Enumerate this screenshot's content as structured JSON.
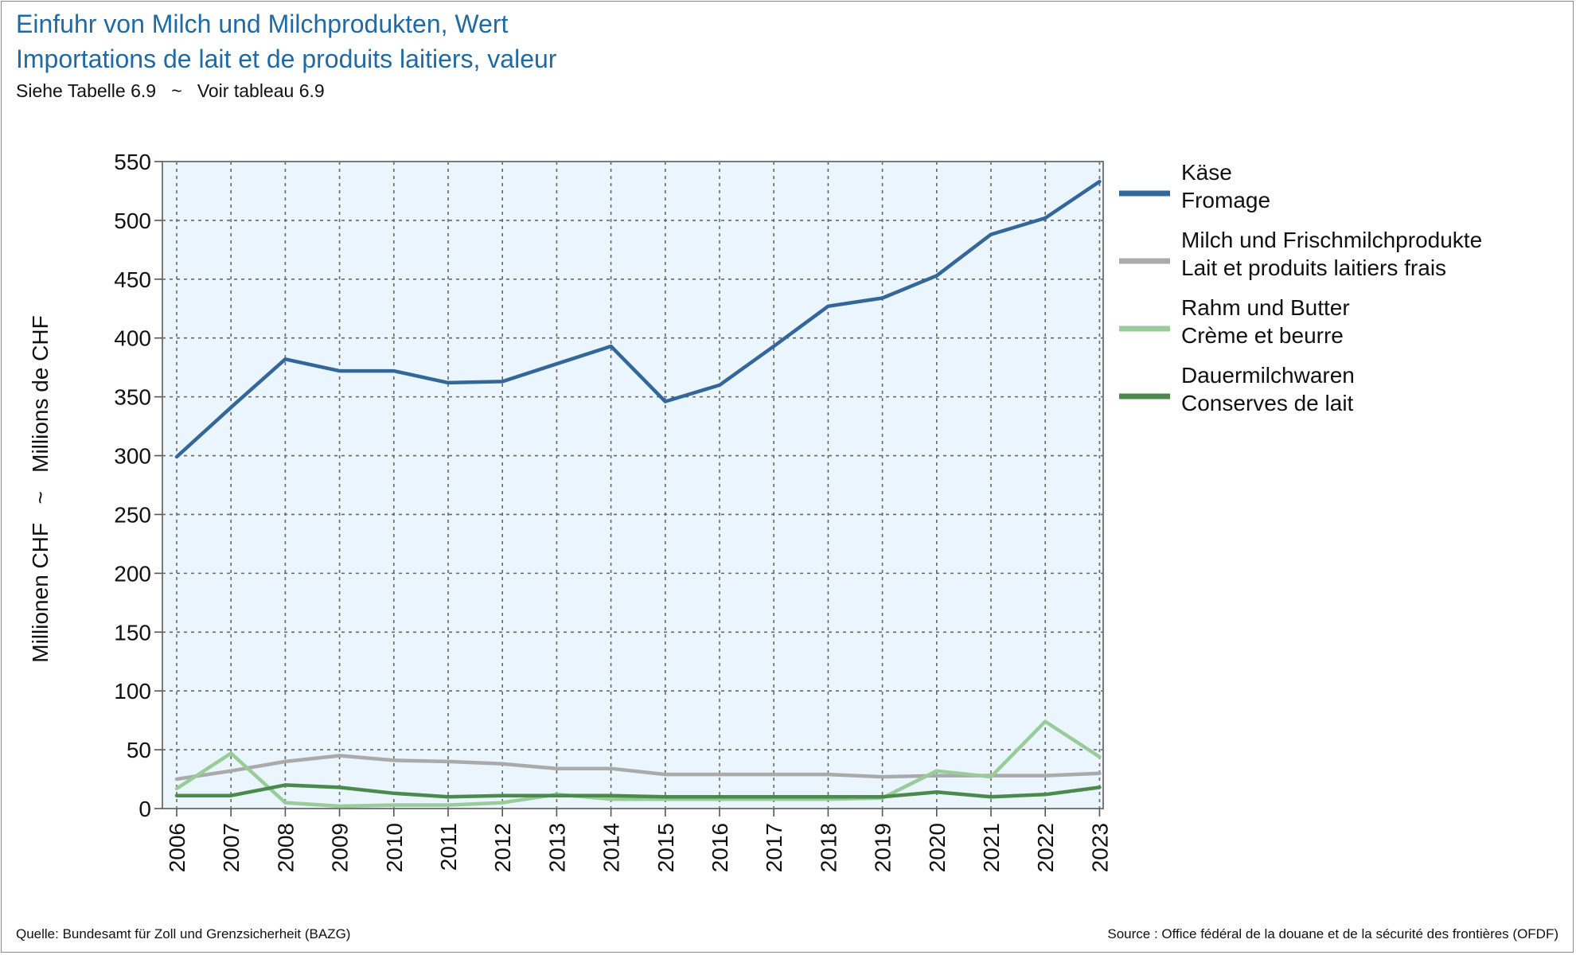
{
  "header": {
    "title_de": "Einfuhr von Milch und Milchprodukten, Wert",
    "title_fr": "Importations de lait et de produits laitiers, valeur",
    "subtitle": "Siehe Tabelle 6.9   ~   Voir tableau 6.9"
  },
  "footer": {
    "source_de": "Quelle: Bundesamt für Zoll und Grenzsicherheit (BAZG)",
    "source_fr": "Source : Office fédéral de la douane et de la sécurité des frontières (OFDF)"
  },
  "chart_data": {
    "type": "line",
    "ylabel": "Millionen CHF   ~   Millions de CHF",
    "ylim": [
      0,
      550
    ],
    "yticks": [
      0,
      50,
      100,
      150,
      200,
      250,
      300,
      350,
      400,
      450,
      500,
      550
    ],
    "x": [
      "2006",
      "2007",
      "2008",
      "2009",
      "2010",
      "2011",
      "2012",
      "2013",
      "2014",
      "2015",
      "2016",
      "2017",
      "2018",
      "2019",
      "2020",
      "2021",
      "2022",
      "2023"
    ],
    "grid": true,
    "legend_position": "right",
    "plot_background": "#eaf5fd",
    "series": [
      {
        "name_de": "Käse",
        "name_fr": "Fromage",
        "color": "#336699",
        "values": [
          299,
          341,
          382,
          372,
          372,
          362,
          363,
          378,
          393,
          346,
          360,
          393,
          427,
          434,
          453,
          488,
          502,
          533
        ]
      },
      {
        "name_de": "Milch und Frischmilchprodukte",
        "name_fr": "Lait et produits laitiers frais",
        "color": "#aaaaaa",
        "values": [
          25,
          32,
          40,
          45,
          41,
          40,
          38,
          34,
          34,
          29,
          29,
          29,
          29,
          27,
          28,
          28,
          28,
          30
        ]
      },
      {
        "name_de": "Rahm und Butter",
        "name_fr": "Crème et beurre",
        "color": "#99cc99",
        "values": [
          17,
          47,
          5,
          2,
          3,
          3,
          5,
          12,
          8,
          8,
          8,
          8,
          8,
          9,
          32,
          27,
          74,
          44
        ]
      },
      {
        "name_de": "Dauermilchwaren",
        "name_fr": "Conserves de lait",
        "color": "#4a8a4a",
        "values": [
          11,
          11,
          20,
          18,
          13,
          10,
          11,
          11,
          11,
          10,
          10,
          10,
          10,
          10,
          14,
          10,
          12,
          18
        ]
      }
    ]
  }
}
